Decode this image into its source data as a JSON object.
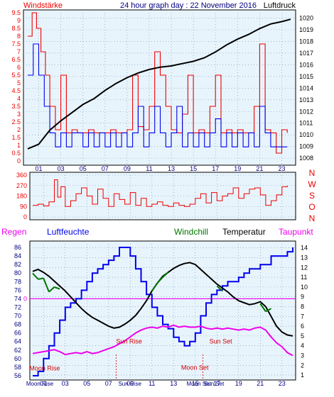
{
  "header": {
    "left": "Windstärke",
    "center": "24 hour graph day : 22 November 2016",
    "right": "Luftdruck"
  },
  "colors": {
    "plot_bg": "#e8f4fc",
    "grid": "#6a8fb0",
    "red": "#ee0000",
    "blue": "#0000ee",
    "black": "#000000",
    "green": "#007700",
    "magenta": "#ee00ee",
    "dark_blue": "#000080"
  },
  "chart_data": [
    {
      "type": "line",
      "name": "wind-pressure",
      "x_ticks": [
        "01",
        "03",
        "05",
        "07",
        "09",
        "11",
        "13",
        "15",
        "17",
        "19",
        "21",
        "23"
      ],
      "left_axis": {
        "label": "Windstärke",
        "ticks": [
          "0",
          "0.5",
          "1",
          "1.5",
          "2",
          "2.5",
          "3",
          "3.5",
          "4",
          "4.5",
          "5",
          "5.5",
          "6",
          "6.5",
          "7",
          "7.5",
          "8",
          "8.5",
          "9",
          "9.5"
        ],
        "range": [
          0,
          9.5
        ]
      },
      "right_axis": {
        "label": "Luftdruck",
        "ticks": [
          "1008",
          "1009",
          "1010",
          "1011",
          "1012",
          "1013",
          "1014",
          "1015",
          "1016",
          "1017",
          "1018",
          "1019",
          "1020"
        ],
        "range": [
          1007.4,
          1020.7
        ]
      },
      "series": [
        {
          "role": "gust",
          "color": "red",
          "x": [
            0,
            0.4,
            0.8,
            1.2,
            1.6,
            2.0,
            2.5,
            3.0,
            3.5,
            4.0,
            4.5,
            5.0,
            5.5,
            6.0,
            6.5,
            7.0,
            7.5,
            8.0,
            8.5,
            9.0,
            9.5,
            10.0,
            10.5,
            11.0,
            11.5,
            12.0,
            12.5,
            13.0,
            13.5,
            14.0,
            14.5,
            15.0,
            15.5,
            16.0,
            16.5,
            17.0,
            17.5,
            18.0,
            18.5,
            19.0,
            19.5,
            20.0,
            20.5,
            21.0,
            21.5,
            22.0,
            22.5,
            23.0,
            23.5
          ],
          "y": [
            8.0,
            9.5,
            8.5,
            7.0,
            5.5,
            3.5,
            2.0,
            5.5,
            1.8,
            2.0,
            1.8,
            1.8,
            2.0,
            1.8,
            1.8,
            1.8,
            2.0,
            1.8,
            1.8,
            2.0,
            5.5,
            2.2,
            2.0,
            3.5,
            7.0,
            5.5,
            3.5,
            2.0,
            1.8,
            3.0,
            5.5,
            1.8,
            2.0,
            1.8,
            3.5,
            5.5,
            1.8,
            2.0,
            1.8,
            2.0,
            1.8,
            1.8,
            3.5,
            7.5,
            2.0,
            1.8,
            0.5,
            2.0,
            1.8
          ]
        },
        {
          "role": "wind",
          "color": "blue",
          "x": [
            0,
            0.5,
            1.0,
            1.5,
            2.0,
            2.5,
            3.0,
            3.5,
            4.0,
            4.5,
            5.0,
            5.5,
            6.0,
            6.5,
            7.0,
            7.5,
            8.0,
            8.5,
            9.0,
            9.5,
            10.0,
            10.5,
            11.0,
            11.5,
            12.0,
            12.5,
            13.0,
            13.5,
            14.0,
            14.5,
            15.0,
            15.5,
            16.0,
            16.5,
            17.0,
            17.5,
            18.0,
            18.5,
            19.0,
            19.5,
            20.0,
            20.5,
            21.0,
            21.5,
            22.0,
            22.5,
            23.0,
            23.5
          ],
          "y": [
            5.5,
            7.5,
            5.5,
            3.5,
            1.8,
            0.9,
            1.8,
            0.9,
            1.8,
            1.8,
            0.9,
            1.8,
            0.9,
            1.8,
            0.9,
            1.8,
            0.9,
            1.8,
            0.9,
            1.8,
            3.5,
            0.9,
            1.8,
            3.5,
            1.8,
            0.9,
            1.8,
            3.5,
            0.9,
            1.8,
            0.9,
            1.8,
            0.9,
            1.8,
            2.7,
            0.9,
            1.8,
            0.9,
            1.8,
            0.9,
            1.8,
            0.9,
            3.5,
            1.8,
            0.9,
            0.9,
            0.9,
            0.9
          ]
        },
        {
          "role": "pressure",
          "color": "black",
          "x": [
            0,
            1,
            2,
            3,
            4,
            5,
            6,
            7,
            8,
            9,
            10,
            11,
            12,
            13,
            14,
            15,
            16,
            17,
            18,
            19,
            20,
            21,
            22,
            23,
            23.8
          ],
          "y": [
            1008.8,
            1009.2,
            1010.4,
            1011.2,
            1011.9,
            1012.6,
            1013.1,
            1013.8,
            1014.4,
            1014.9,
            1015.3,
            1015.6,
            1015.8,
            1015.9,
            1016.1,
            1016.3,
            1016.6,
            1017.1,
            1017.7,
            1018.2,
            1018.6,
            1019.1,
            1019.5,
            1019.7,
            1019.9
          ]
        }
      ]
    },
    {
      "type": "scatter",
      "name": "wind-direction",
      "x_ticks": [
        "01",
        "03",
        "05",
        "07",
        "09",
        "11",
        "13",
        "15",
        "17",
        "19",
        "21",
        "23"
      ],
      "y_ticks": [
        "0",
        "90",
        "180",
        "270",
        "360"
      ],
      "y_range": [
        0,
        360
      ],
      "compass": [
        "N",
        "W",
        "S",
        "O",
        "N"
      ],
      "series": [
        {
          "color": "red",
          "x": [
            0,
            0.5,
            1,
            1.5,
            2,
            2.3,
            2.6,
            3,
            3.5,
            4,
            4.5,
            5,
            5.5,
            6,
            6.5,
            7,
            7.5,
            8,
            8.5,
            9,
            9.5,
            10,
            10.5,
            11,
            11.5,
            12,
            12.5,
            13,
            13.5,
            14,
            14.5,
            15,
            15.5,
            16,
            16.5,
            17,
            17.5,
            18,
            18.5,
            19,
            19.5,
            20,
            20.5,
            21,
            21.5,
            22,
            22.5,
            23,
            23.5
          ],
          "y": [
            100,
            110,
            95,
            130,
            320,
            170,
            260,
            90,
            140,
            200,
            250,
            180,
            110,
            240,
            160,
            90,
            200,
            150,
            110,
            210,
            100,
            160,
            90,
            110,
            130,
            100,
            90,
            120,
            100,
            90,
            110,
            160,
            200,
            120,
            210,
            140,
            180,
            200,
            250,
            160,
            200,
            240,
            250,
            190,
            100,
            140,
            190,
            260,
            270
          ]
        }
      ]
    },
    {
      "type": "line",
      "name": "temperature-humidity",
      "legend": [
        "Regen",
        "Luftfeuchte",
        "Windchill",
        "Temperatur",
        "Taupunkt"
      ],
      "x_ticks": [
        "01",
        "03",
        "05",
        "07",
        "09",
        "11",
        "13",
        "15",
        "17",
        "19",
        "21",
        "23"
      ],
      "left_axis": {
        "ticks": [
          "56",
          "58",
          "60",
          "62",
          "64",
          "66",
          "68",
          "70",
          "72",
          "74",
          "76",
          "78",
          "80",
          "82",
          "84",
          "86"
        ],
        "range": [
          55,
          87.5
        ],
        "zero_mark": "0"
      },
      "right_axis": {
        "ticks": [
          "1",
          "2",
          "3",
          "4",
          "5",
          "6",
          "7",
          "8",
          "9",
          "10",
          "11",
          "12",
          "13",
          "14"
        ],
        "range": [
          0.5,
          14.7
        ]
      },
      "annotations": [
        {
          "label": "Moon Rise",
          "x": -0.3,
          "y": 57.2
        },
        {
          "label": "Sun Rise",
          "x": 7.7,
          "y": 63.5
        },
        {
          "label": "Moon Set",
          "x": 13.7,
          "y": 57.4
        },
        {
          "label": "Sun Set",
          "x": 16.3,
          "y": 63.5
        }
      ],
      "bottom_labels": [
        {
          "label": "Moon Rise",
          "x": -0.6
        },
        {
          "label": "Sun Rise",
          "x": 7.9
        },
        {
          "label": "Moon Set",
          "x": 14.2
        },
        {
          "label": "Sun Set",
          "x": 15.8
        }
      ],
      "series": [
        {
          "name": "Luftfeuchte",
          "color": "blue",
          "axis": "left",
          "x": [
            0,
            0.5,
            1,
            1.5,
            2,
            2.5,
            3,
            3.5,
            4,
            4.5,
            5,
            5.5,
            6,
            6.5,
            7,
            7.5,
            8,
            8.5,
            9,
            9.5,
            10,
            10.5,
            11,
            11.5,
            12,
            12.5,
            13,
            13.5,
            14,
            14.5,
            15,
            15.5,
            16,
            16.5,
            17,
            17.5,
            18,
            18.5,
            19,
            19.5,
            20,
            20.5,
            21,
            21.5,
            22,
            22.5,
            23,
            23.5,
            24
          ],
          "y": [
            56,
            57,
            60,
            63,
            66,
            69,
            72,
            73,
            74,
            76,
            78,
            80,
            81,
            82,
            83,
            84,
            86,
            86,
            84,
            81,
            78,
            75,
            72,
            70,
            68,
            67,
            65,
            64,
            63,
            64,
            66,
            70,
            73,
            75,
            76,
            77,
            78,
            78,
            79,
            80,
            81,
            81,
            82,
            82,
            84,
            84,
            84,
            85,
            86
          ]
        },
        {
          "name": "Temperatur",
          "color": "black",
          "axis": "right",
          "x": [
            0,
            0.5,
            1,
            1.5,
            2,
            2.5,
            3,
            3.5,
            4,
            4.5,
            5,
            5.5,
            6,
            6.5,
            7,
            7.5,
            8,
            8.5,
            9,
            9.5,
            10,
            10.5,
            11,
            11.5,
            12,
            12.5,
            13,
            13.5,
            14,
            14.5,
            15,
            15.5,
            16,
            16.5,
            17,
            17.5,
            18,
            18.5,
            19,
            19.5,
            20,
            20.5,
            21,
            21.5,
            22,
            22.5,
            23,
            23.5,
            24
          ],
          "y": [
            11.6,
            11.8,
            11.5,
            11.1,
            10.6,
            10.1,
            9.6,
            9.0,
            8.4,
            7.8,
            7.3,
            6.9,
            6.6,
            6.3,
            6.0,
            5.8,
            5.9,
            6.2,
            6.6,
            7.1,
            7.8,
            8.6,
            9.6,
            10.4,
            11.1,
            11.5,
            11.9,
            12.2,
            12.4,
            12.5,
            12.3,
            11.8,
            11.3,
            10.8,
            10.3,
            9.9,
            9.5,
            9.0,
            8.6,
            8.4,
            8.2,
            8.3,
            8.5,
            8.0,
            7.0,
            6.0,
            5.4,
            5.1,
            5.0
          ]
        },
        {
          "name": "Windchill",
          "color": "green",
          "axis": "right",
          "x": [
            0,
            0.5,
            1,
            1.5,
            2,
            2.5,
            11,
            11.5,
            12,
            12.5,
            17,
            17.5,
            21,
            21.5,
            22
          ],
          "y": [
            11.4,
            10.8,
            10.9,
            9.5,
            10.0,
            9.8,
            9.6,
            10.4,
            11.0,
            11.5,
            10.1,
            9.6,
            8.3,
            7.5,
            7.8
          ]
        },
        {
          "name": "Taupunkt",
          "color": "magenta",
          "axis": "right",
          "x": [
            0,
            0.5,
            1,
            1.5,
            2,
            2.5,
            3,
            3.5,
            4,
            4.5,
            5,
            5.5,
            6,
            6.5,
            7,
            7.5,
            8,
            8.5,
            9,
            9.5,
            10,
            10.5,
            11,
            11.5,
            12,
            12.5,
            13,
            13.5,
            14,
            14.5,
            15,
            15.5,
            16,
            16.5,
            17,
            17.5,
            18,
            18.5,
            19,
            19.5,
            20,
            20.5,
            21,
            21.5,
            22,
            22.5,
            23,
            23.5,
            24
          ],
          "y": [
            3.2,
            3.3,
            3.4,
            3.5,
            3.6,
            3.4,
            3.1,
            3.2,
            3.3,
            3.2,
            3.4,
            3.2,
            3.3,
            3.5,
            3.7,
            3.9,
            4.2,
            4.5,
            4.9,
            5.3,
            5.6,
            5.8,
            5.9,
            5.8,
            6.0,
            5.9,
            6.1,
            5.9,
            6.0,
            5.9,
            5.9,
            6.0,
            5.8,
            5.7,
            5.8,
            5.7,
            5.8,
            5.7,
            5.6,
            5.7,
            5.6,
            5.8,
            5.9,
            5.6,
            4.9,
            4.3,
            3.9,
            3.3,
            3.0
          ]
        }
      ]
    }
  ]
}
